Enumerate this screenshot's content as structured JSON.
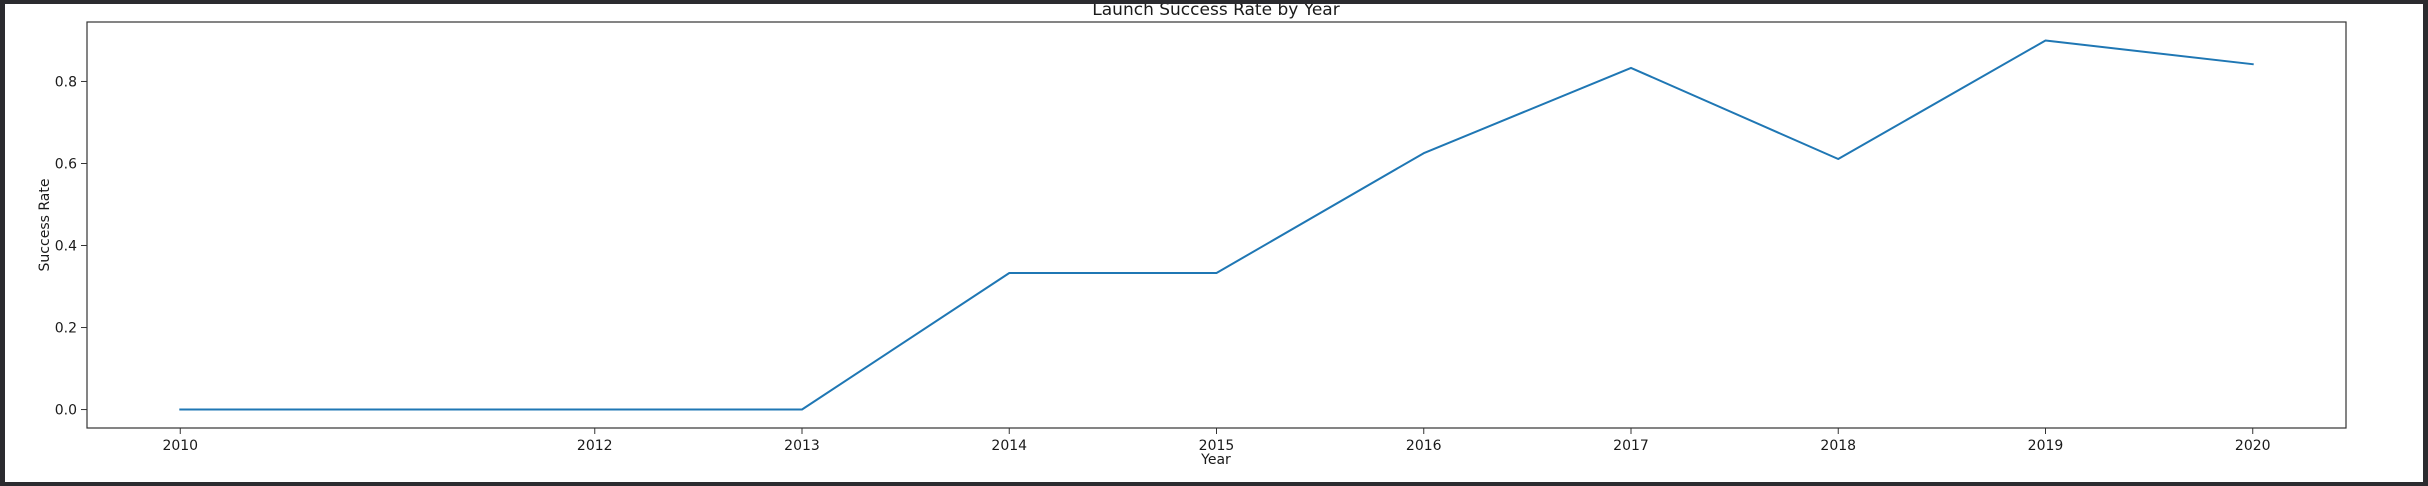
{
  "chart_data": {
    "type": "line",
    "title": "Launch Success Rate by Year",
    "xlabel": "Year",
    "ylabel": "Success Rate",
    "xlim": [
      2009.55,
      2020.45
    ],
    "ylim": [
      -0.045,
      0.945
    ],
    "x_ticks": [
      2010,
      2012,
      2013,
      2014,
      2015,
      2016,
      2017,
      2018,
      2019,
      2020
    ],
    "y_ticks": [
      0.0,
      0.2,
      0.4,
      0.6,
      0.8
    ],
    "y_tick_labels": [
      "0.0",
      "0.2",
      "0.4",
      "0.6",
      "0.8"
    ],
    "grid": false,
    "series": [
      {
        "color": "#1f77b4",
        "x": [
          2010,
          2012,
          2013,
          2014,
          2015,
          2016,
          2017,
          2018,
          2019,
          2020
        ],
        "y": [
          0.0,
          0.0,
          0.0,
          0.333,
          0.333,
          0.625,
          0.833,
          0.611,
          0.9,
          0.842
        ]
      }
    ]
  }
}
